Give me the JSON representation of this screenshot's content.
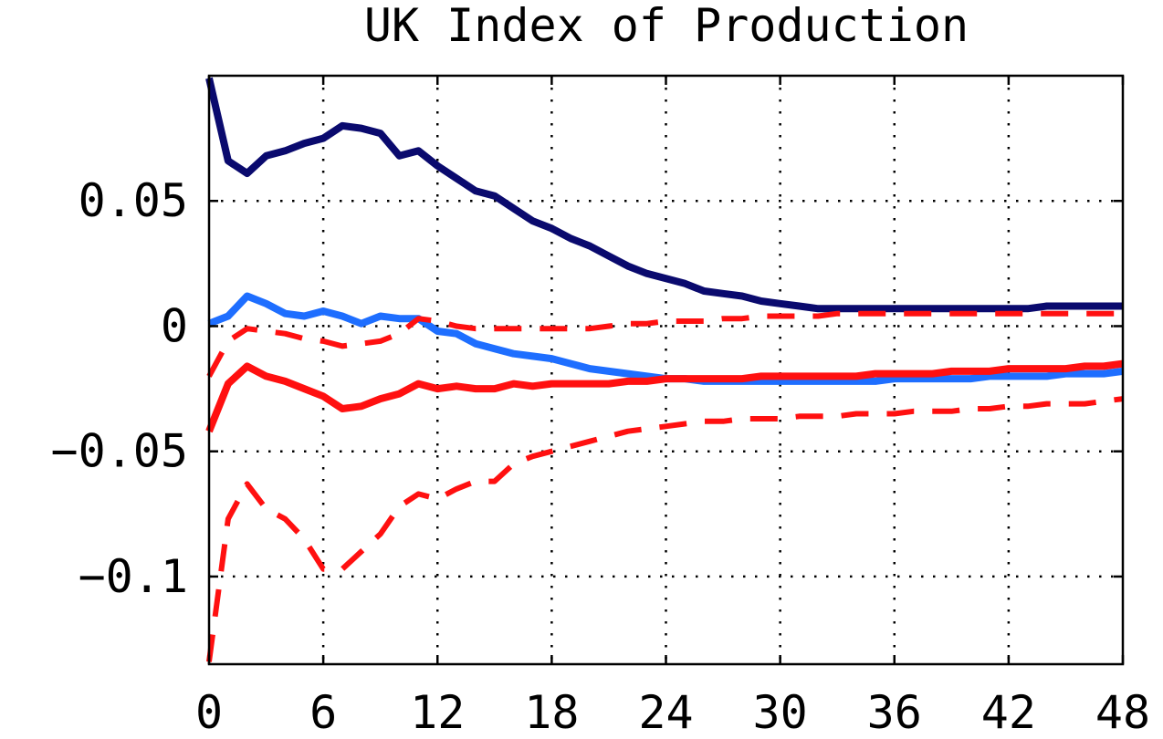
{
  "chart_data": {
    "type": "line",
    "title": "UK Index of Production",
    "xlabel": "",
    "ylabel": "",
    "xlim": [
      0,
      48
    ],
    "ylim": [
      -0.135,
      0.1
    ],
    "x_ticks": [
      0,
      6,
      12,
      18,
      24,
      30,
      36,
      42,
      48
    ],
    "x_tick_labels": [
      "0",
      "6",
      "12",
      "18",
      "24",
      "30",
      "36",
      "42",
      "48"
    ],
    "y_ticks": [
      0.05,
      0,
      -0.05,
      -0.1
    ],
    "y_tick_labels": [
      "0.05",
      "0",
      "−0.05",
      "−0.1"
    ],
    "grid": true,
    "legend": "none",
    "series": [
      {
        "color": "#0a0a6e",
        "style": "solid",
        "x": [
          0,
          1,
          2,
          3,
          4,
          5,
          6,
          7,
          8,
          9,
          10,
          11,
          12,
          13,
          14,
          15,
          16,
          17,
          18,
          19,
          20,
          21,
          22,
          23,
          24,
          25,
          26,
          27,
          28,
          29,
          30,
          31,
          32,
          33,
          34,
          35,
          36,
          37,
          38,
          39,
          40,
          41,
          42,
          43,
          44,
          45,
          46,
          47,
          48
        ],
        "values": [
          0.099,
          0.066,
          0.061,
          0.068,
          0.07,
          0.073,
          0.075,
          0.08,
          0.079,
          0.077,
          0.068,
          0.07,
          0.064,
          0.059,
          0.054,
          0.052,
          0.047,
          0.042,
          0.039,
          0.035,
          0.032,
          0.028,
          0.024,
          0.021,
          0.019,
          0.017,
          0.014,
          0.013,
          0.012,
          0.01,
          0.009,
          0.008,
          0.007,
          0.007,
          0.007,
          0.007,
          0.007,
          0.007,
          0.007,
          0.007,
          0.007,
          0.007,
          0.007,
          0.007,
          0.008,
          0.008,
          0.008,
          0.008,
          0.008
        ]
      },
      {
        "color": "#1e6eff",
        "style": "solid",
        "x": [
          0,
          1,
          2,
          3,
          4,
          5,
          6,
          7,
          8,
          9,
          10,
          11,
          12,
          13,
          14,
          15,
          16,
          17,
          18,
          19,
          20,
          21,
          22,
          23,
          24,
          25,
          26,
          27,
          28,
          29,
          30,
          31,
          32,
          33,
          34,
          35,
          36,
          37,
          38,
          39,
          40,
          41,
          42,
          43,
          44,
          45,
          46,
          47,
          48
        ],
        "values": [
          0.001,
          0.004,
          0.012,
          0.009,
          0.005,
          0.004,
          0.006,
          0.004,
          0.001,
          0.004,
          0.003,
          0.003,
          -0.002,
          -0.003,
          -0.007,
          -0.009,
          -0.011,
          -0.012,
          -0.013,
          -0.015,
          -0.017,
          -0.018,
          -0.019,
          -0.02,
          -0.021,
          -0.021,
          -0.022,
          -0.022,
          -0.022,
          -0.022,
          -0.022,
          -0.022,
          -0.022,
          -0.022,
          -0.022,
          -0.022,
          -0.021,
          -0.021,
          -0.021,
          -0.021,
          -0.021,
          -0.02,
          -0.02,
          -0.02,
          -0.02,
          -0.019,
          -0.019,
          -0.019,
          -0.018
        ]
      },
      {
        "color": "#ff1010",
        "style": "solid",
        "x": [
          0,
          1,
          2,
          3,
          4,
          5,
          6,
          7,
          8,
          9,
          10,
          11,
          12,
          13,
          14,
          15,
          16,
          17,
          18,
          19,
          20,
          21,
          22,
          23,
          24,
          25,
          26,
          27,
          28,
          29,
          30,
          31,
          32,
          33,
          34,
          35,
          36,
          37,
          38,
          39,
          40,
          41,
          42,
          43,
          44,
          45,
          46,
          47,
          48
        ],
        "values": [
          -0.042,
          -0.023,
          -0.016,
          -0.02,
          -0.022,
          -0.025,
          -0.028,
          -0.033,
          -0.032,
          -0.029,
          -0.027,
          -0.023,
          -0.025,
          -0.024,
          -0.025,
          -0.025,
          -0.023,
          -0.024,
          -0.023,
          -0.023,
          -0.023,
          -0.023,
          -0.022,
          -0.022,
          -0.021,
          -0.021,
          -0.021,
          -0.021,
          -0.021,
          -0.02,
          -0.02,
          -0.02,
          -0.02,
          -0.02,
          -0.02,
          -0.019,
          -0.019,
          -0.019,
          -0.019,
          -0.018,
          -0.018,
          -0.018,
          -0.017,
          -0.017,
          -0.017,
          -0.017,
          -0.016,
          -0.016,
          -0.015
        ]
      },
      {
        "color": "#ff1010",
        "style": "dashed",
        "x": [
          0,
          1,
          2,
          3,
          4,
          5,
          6,
          7,
          8,
          9,
          10,
          11,
          12,
          13,
          14,
          15,
          16,
          17,
          18,
          19,
          20,
          21,
          22,
          23,
          24,
          25,
          26,
          27,
          28,
          29,
          30,
          31,
          32,
          33,
          34,
          35,
          36,
          37,
          38,
          39,
          40,
          41,
          42,
          43,
          44,
          45,
          46,
          47,
          48
        ],
        "values": [
          -0.02,
          -0.006,
          -0.001,
          -0.002,
          -0.003,
          -0.005,
          -0.006,
          -0.008,
          -0.007,
          -0.006,
          -0.003,
          0.003,
          0.002,
          0.0,
          -0.001,
          -0.001,
          -0.001,
          -0.001,
          -0.001,
          -0.001,
          -0.001,
          0.0,
          0.001,
          0.001,
          0.002,
          0.002,
          0.002,
          0.003,
          0.003,
          0.004,
          0.004,
          0.004,
          0.004,
          0.005,
          0.005,
          0.005,
          0.005,
          0.005,
          0.005,
          0.005,
          0.005,
          0.005,
          0.005,
          0.005,
          0.005,
          0.005,
          0.005,
          0.005,
          0.005
        ]
      },
      {
        "color": "#ff1010",
        "style": "dashed",
        "x": [
          0,
          1,
          2,
          3,
          4,
          5,
          6,
          7,
          8,
          9,
          10,
          11,
          12,
          13,
          14,
          15,
          16,
          17,
          18,
          19,
          20,
          21,
          22,
          23,
          24,
          25,
          26,
          27,
          28,
          29,
          30,
          31,
          32,
          33,
          34,
          35,
          36,
          37,
          38,
          39,
          40,
          41,
          42,
          43,
          44,
          45,
          46,
          47,
          48
        ],
        "values": [
          -0.134,
          -0.077,
          -0.063,
          -0.073,
          -0.077,
          -0.085,
          -0.097,
          -0.097,
          -0.09,
          -0.083,
          -0.072,
          -0.067,
          -0.069,
          -0.065,
          -0.062,
          -0.062,
          -0.055,
          -0.052,
          -0.05,
          -0.048,
          -0.046,
          -0.044,
          -0.042,
          -0.041,
          -0.04,
          -0.039,
          -0.038,
          -0.038,
          -0.037,
          -0.037,
          -0.037,
          -0.036,
          -0.036,
          -0.036,
          -0.035,
          -0.035,
          -0.035,
          -0.034,
          -0.034,
          -0.034,
          -0.033,
          -0.033,
          -0.032,
          -0.032,
          -0.031,
          -0.031,
          -0.031,
          -0.03,
          -0.029
        ]
      }
    ]
  }
}
